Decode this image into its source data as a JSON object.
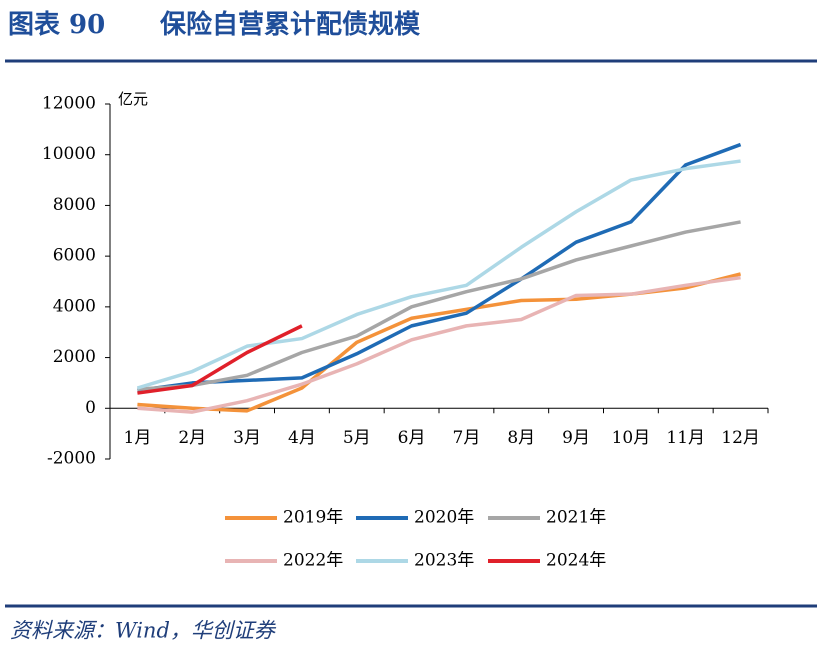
{
  "chart_data": {
    "type": "line",
    "figure_label": "图表 90",
    "title": "保险自营累计配债规模",
    "y_unit": "亿元",
    "source": "资料来源：Wind，华创证券",
    "categories": [
      "1月",
      "2月",
      "3月",
      "4月",
      "5月",
      "6月",
      "7月",
      "8月",
      "9月",
      "10月",
      "11月",
      "12月"
    ],
    "ylim": [
      -2000,
      12000
    ],
    "yticks": [
      -2000,
      0,
      2000,
      4000,
      6000,
      8000,
      10000,
      12000
    ],
    "grid": false,
    "series": [
      {
        "name": "2019年",
        "color": "#f4923a",
        "values": [
          150,
          0,
          -100,
          800,
          2600,
          3550,
          3900,
          4250,
          4300,
          4500,
          4750,
          5300
        ]
      },
      {
        "name": "2020年",
        "color": "#1f6bb5",
        "values": [
          700,
          1000,
          1100,
          1200,
          2150,
          3250,
          3750,
          5100,
          6550,
          7350,
          9600,
          10400
        ]
      },
      {
        "name": "2021年",
        "color": "#a6a6a6",
        "values": [
          750,
          900,
          1300,
          2200,
          2850,
          4000,
          4600,
          5100,
          5850,
          6400,
          6950,
          7350
        ]
      },
      {
        "name": "2022年",
        "color": "#e8b4b4",
        "values": [
          0,
          -150,
          300,
          950,
          1750,
          2700,
          3250,
          3500,
          4450,
          4500,
          4850,
          5150
        ]
      },
      {
        "name": "2023年",
        "color": "#add8e6",
        "values": [
          800,
          1450,
          2450,
          2750,
          3700,
          4400,
          4850,
          6350,
          7750,
          9000,
          9450,
          9750
        ]
      },
      {
        "name": "2024年",
        "color": "#e0202a",
        "values": [
          600,
          900,
          2200,
          3250,
          null,
          null,
          null,
          null,
          null,
          null,
          null,
          null
        ]
      }
    ]
  }
}
